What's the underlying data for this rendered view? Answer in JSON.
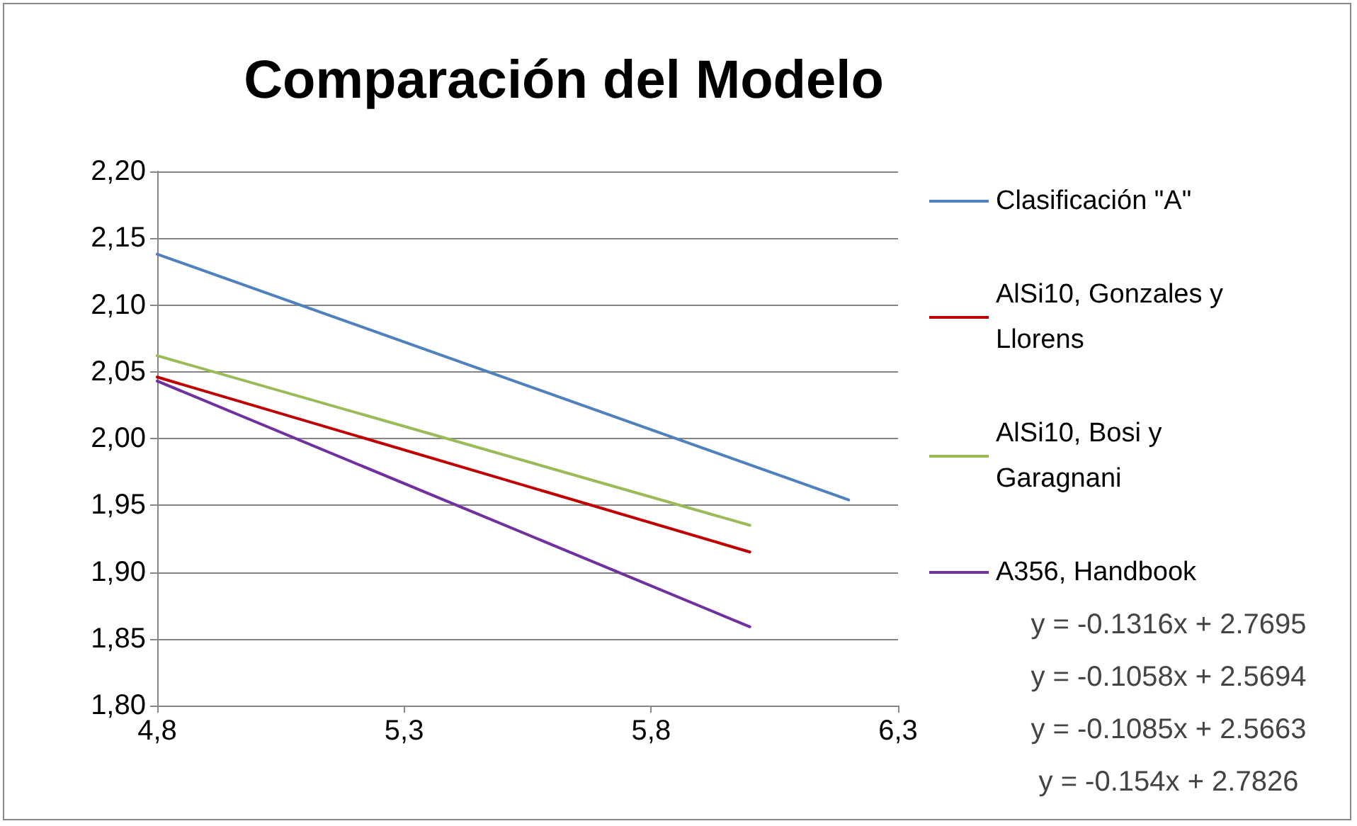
{
  "chart_data": {
    "type": "line",
    "title": "Comparación del Modelo",
    "xlim": [
      4.8,
      6.3
    ],
    "xticks": [
      {
        "value": 4.8,
        "label": "4,8"
      },
      {
        "value": 5.3,
        "label": "5,3"
      },
      {
        "value": 5.8,
        "label": "5,8"
      },
      {
        "value": 6.3,
        "label": "6,3"
      }
    ],
    "ylim": [
      1.8,
      2.2
    ],
    "yticks": [
      {
        "value": 1.8,
        "label": "1,80"
      },
      {
        "value": 1.85,
        "label": "1,85"
      },
      {
        "value": 1.9,
        "label": "1,90"
      },
      {
        "value": 1.95,
        "label": "1,95"
      },
      {
        "value": 2.0,
        "label": "2,00"
      },
      {
        "value": 2.05,
        "label": "2,05"
      },
      {
        "value": 2.1,
        "label": "2,10"
      },
      {
        "value": 2.15,
        "label": "2,15"
      },
      {
        "value": 2.2,
        "label": "2,20"
      }
    ],
    "grid": "y",
    "legend": "right",
    "marker": "none",
    "line_style": "solid",
    "series": [
      {
        "name": "Clasificación \"A\"",
        "color": "#4f81bd",
        "x": [
          4.8,
          6.2
        ],
        "values": [
          2.138,
          1.954
        ]
      },
      {
        "name": "AlSi10, Gonzales y Llorens",
        "color": "#c00000",
        "x": [
          4.8,
          6.0
        ],
        "values": [
          2.046,
          1.915
        ]
      },
      {
        "name": "AlSi10, Bosi y Garagnani",
        "color": "#9bbb59",
        "x": [
          4.8,
          6.0
        ],
        "values": [
          2.062,
          1.935
        ]
      },
      {
        "name": "A356, Handbook",
        "color": "#7030a0",
        "x": [
          4.8,
          6.0
        ],
        "values": [
          2.043,
          1.859
        ]
      }
    ],
    "annotations": [
      "y = -0.1316x + 2.7695",
      "y = -0.1058x + 2.5694",
      "y = -0.1085x + 2.5663",
      "y = -0.154x + 2.7826"
    ]
  }
}
